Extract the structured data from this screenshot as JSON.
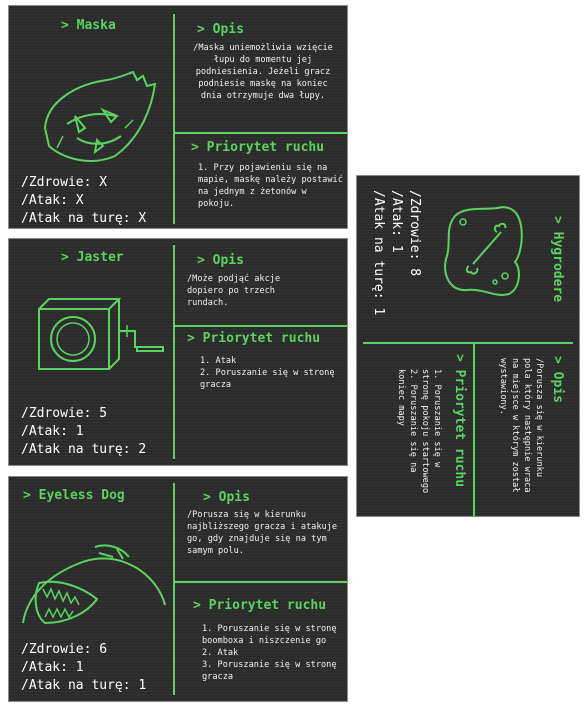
{
  "cards": [
    {
      "name": "Maska",
      "opis_heading": "Opis",
      "description": "/Maska uniemożliwia wzięcie łupu do momentu jej podniesienia. Jeżeli gracz podniesie maskę na koniec dnia otrzymuje dwa łupy.",
      "priority_heading": "Priorytet ruchu",
      "priority": [
        "1. Przy pojawieniu się na mapie, maskę należy postawić na jednym z żetonów w pokoju."
      ],
      "stats": [
        "/Zdrowie: X",
        "/Atak: X",
        "/Atak na turę: X"
      ]
    },
    {
      "name": "Jaster",
      "opis_heading": "Opis",
      "description": "/Może podjąć akcje dopiero po trzech rundach.",
      "priority_heading": "Priorytet ruchu",
      "priority": [
        "1. Atak",
        "2. Poruszanie się w stronę gracza"
      ],
      "stats": [
        "/Zdrowie: 5",
        "/Atak: 1",
        "/Atak na turę: 2"
      ]
    },
    {
      "name": "Eyeless Dog",
      "opis_heading": "Opis",
      "description": "/Porusza się w kierunku najbliższego gracza i atakuje go, gdy znajduje się na tym samym polu.",
      "priority_heading": "Priorytet ruchu",
      "priority": [
        "1. Poruszanie się w stronę boomboxa i niszczenie go",
        "2. Atak",
        "3. Poruszanie się w stronę gracza"
      ],
      "stats": [
        "/Zdrowie: 6",
        "/Atak: 1",
        "/Atak na turę: 1"
      ]
    },
    {
      "name": "Hygrodere",
      "opis_heading": "Opis",
      "description": "/Porusza się w kierunku pola który następnie wraca na miejsce w którym został wystawiony.",
      "priority_heading": "Priorytet ruchu",
      "priority": [
        "1. Poruszanie się w stronę pokoju startowego",
        "2. Poruszanie się na koniec mapy"
      ],
      "stats": [
        "/Zdrowie: 8",
        "/Atak: 1",
        "/Atak na turę: 1"
      ]
    }
  ],
  "prefix": ">",
  "colors": {
    "accent": "#59d45e",
    "card_bg": "#2b2b2b",
    "text": "#f0f0f0"
  },
  "icons": [
    "mask-icon",
    "jack-in-the-box-icon",
    "eyeless-dog-icon",
    "slime-bone-icon"
  ]
}
